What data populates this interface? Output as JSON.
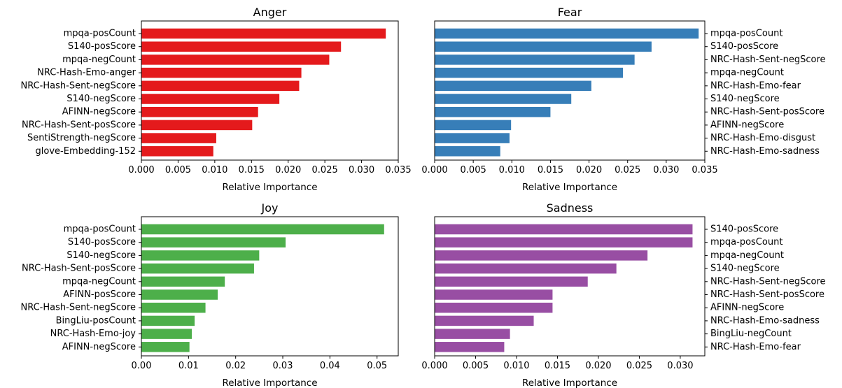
{
  "chart_data": [
    {
      "type": "bar",
      "orientation": "horizontal",
      "title": "Anger",
      "xlabel": "Relative Importance",
      "ylabel": "",
      "label_side": "left",
      "color": "#e41a1c",
      "xlim": [
        0,
        0.035
      ],
      "xticks": [
        "0.000",
        "0.005",
        "0.010",
        "0.015",
        "0.020",
        "0.025",
        "0.030",
        "0.035"
      ],
      "categories": [
        "mpqa-posCount",
        "S140-posScore",
        "mpqa-negCount",
        "NRC-Hash-Emo-anger",
        "NRC-Hash-Sent-negScore",
        "S140-negScore",
        "AFINN-negScore",
        "NRC-Hash-Sent-posScore",
        "SentiStrength-negScore",
        "glove-Embedding-152"
      ],
      "values": [
        0.0333,
        0.0272,
        0.0256,
        0.0218,
        0.0215,
        0.0188,
        0.0159,
        0.0151,
        0.0102,
        0.0098
      ]
    },
    {
      "type": "bar",
      "orientation": "horizontal",
      "title": "Fear",
      "xlabel": "Relative Importance",
      "ylabel": "",
      "label_side": "right",
      "color": "#377eb8",
      "xlim": [
        0,
        0.035
      ],
      "xticks": [
        "0.000",
        "0.005",
        "0.010",
        "0.015",
        "0.020",
        "0.025",
        "0.030",
        "0.035"
      ],
      "categories": [
        "mpqa-posCount",
        "S140-posScore",
        "NRC-Hash-Sent-negScore",
        "mpqa-negCount",
        "NRC-Hash-Emo-fear",
        "S140-negScore",
        "NRC-Hash-Sent-posScore",
        "AFINN-negScore",
        "NRC-Hash-Emo-disgust",
        "NRC-Hash-Emo-sadness"
      ],
      "values": [
        0.0342,
        0.0281,
        0.0259,
        0.0244,
        0.0203,
        0.0177,
        0.015,
        0.0099,
        0.0097,
        0.0085
      ]
    },
    {
      "type": "bar",
      "orientation": "horizontal",
      "title": "Joy",
      "xlabel": "Relative Importance",
      "ylabel": "",
      "label_side": "left",
      "color": "#4daf4a",
      "xlim": [
        0,
        0.0545
      ],
      "xticks": [
        "0.00",
        "0.01",
        "0.02",
        "0.03",
        "0.04",
        "0.05"
      ],
      "xtick_values": [
        0,
        0.01,
        0.02,
        0.03,
        0.04,
        0.05
      ],
      "categories": [
        "mpqa-posCount",
        "S140-posScore",
        "S140-negScore",
        "NRC-Hash-Sent-posScore",
        "mpqa-negCount",
        "AFINN-posScore",
        "NRC-Hash-Sent-negScore",
        "BingLiu-posCount",
        "NRC-Hash-Emo-joy",
        "AFINN-negScore"
      ],
      "values": [
        0.0515,
        0.0306,
        0.025,
        0.0239,
        0.0177,
        0.0162,
        0.0136,
        0.0113,
        0.0107,
        0.0102
      ]
    },
    {
      "type": "bar",
      "orientation": "horizontal",
      "title": "Sadness",
      "xlabel": "Relative Importance",
      "ylabel": "",
      "label_side": "right",
      "color": "#984ea3",
      "xlim": [
        0,
        0.033
      ],
      "xticks": [
        "0.000",
        "0.005",
        "0.010",
        "0.015",
        "0.020",
        "0.025",
        "0.030"
      ],
      "xtick_values": [
        0,
        0.005,
        0.01,
        0.015,
        0.02,
        0.025,
        0.03
      ],
      "categories": [
        "S140-posScore",
        "mpqa-posCount",
        "mpqa-negCount",
        "S140-negScore",
        "NRC-Hash-Sent-negScore",
        "NRC-Hash-Sent-posScore",
        "AFINN-negScore",
        "NRC-Hash-Emo-sadness",
        "BingLiu-negCount",
        "NRC-Hash-Emo-fear"
      ],
      "values": [
        0.0315,
        0.0315,
        0.026,
        0.0222,
        0.0187,
        0.0144,
        0.0144,
        0.0121,
        0.0092,
        0.0085
      ]
    }
  ]
}
